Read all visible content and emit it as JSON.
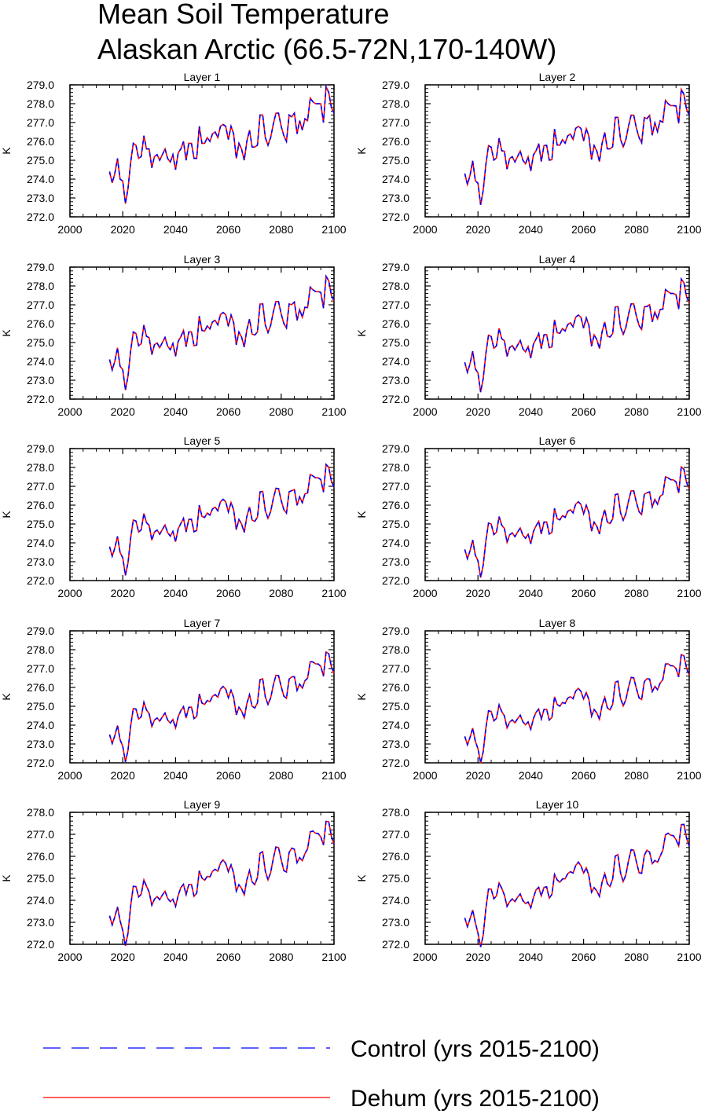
{
  "title": [
    "Mean Soil Temperature",
    "Alaskan Arctic (66.5-72N,170-140W)"
  ],
  "legend": [
    {
      "label": "Control (yrs 2015-2100)",
      "color": "#0000ff",
      "dash": "dashed"
    },
    {
      "label": "Dehum (yrs 2015-2100)",
      "color": "#ff0000",
      "dash": "solid"
    }
  ],
  "chart_data": {
    "type": "line",
    "ylabel": "K",
    "xlim": [
      2000,
      2100
    ],
    "x_ticks": [
      "2000",
      "2020",
      "2040",
      "2060",
      "2080",
      "2100"
    ],
    "series_names": [
      "Control (yrs 2015-2100)",
      "Dehum (yrs 2015-2100)"
    ],
    "x": [
      2015,
      2016,
      2017,
      2018,
      2019,
      2020,
      2021,
      2022,
      2023,
      2024,
      2025,
      2026,
      2027,
      2028,
      2029,
      2030,
      2031,
      2032,
      2033,
      2034,
      2035,
      2036,
      2037,
      2038,
      2039,
      2040,
      2041,
      2042,
      2043,
      2044,
      2045,
      2046,
      2047,
      2048,
      2049,
      2050,
      2051,
      2052,
      2053,
      2054,
      2055,
      2056,
      2057,
      2058,
      2059,
      2060,
      2061,
      2062,
      2063,
      2064,
      2065,
      2066,
      2067,
      2068,
      2069,
      2070,
      2071,
      2072,
      2073,
      2074,
      2075,
      2076,
      2077,
      2078,
      2079,
      2080,
      2081,
      2082,
      2083,
      2084,
      2085,
      2086,
      2087,
      2088,
      2089,
      2090,
      2091,
      2092,
      2093,
      2094,
      2095,
      2096,
      2097,
      2098,
      2099,
      2100
    ],
    "base_curve": [
      274.4,
      273.8,
      274.3,
      275.1,
      274.0,
      273.9,
      272.7,
      273.5,
      274.9,
      275.9,
      275.8,
      275.1,
      275.2,
      276.3,
      275.6,
      275.6,
      274.6,
      275.2,
      275.3,
      275.0,
      275.3,
      275.6,
      275.1,
      274.9,
      275.3,
      274.5,
      275.4,
      275.6,
      276.0,
      275.0,
      275.9,
      275.9,
      275.1,
      275.1,
      276.8,
      275.9,
      275.9,
      276.2,
      276.0,
      276.4,
      276.5,
      276.2,
      276.8,
      276.9,
      276.8,
      276.1,
      276.8,
      276.4,
      275.1,
      275.9,
      275.6,
      275.0,
      276.0,
      276.6,
      275.7,
      275.7,
      275.8,
      277.4,
      277.4,
      276.2,
      275.8,
      276.2,
      276.9,
      277.5,
      277.5,
      276.8,
      276.3,
      276.0,
      277.4,
      277.3,
      277.5,
      276.4,
      277.1,
      276.6,
      277.2,
      277.1,
      278.3,
      278.1,
      278.0,
      278.0,
      278.0,
      277.0,
      278.9,
      278.6,
      277.8,
      277.5
    ],
    "panels": [
      {
        "title": "Layer 1",
        "ylim": [
          272.0,
          279.0
        ],
        "y_ticks": [
          "272.0",
          "273.0",
          "274.0",
          "275.0",
          "276.0",
          "277.0",
          "278.0",
          "279.0"
        ],
        "start_offset": 0.0,
        "end_offset": 0.0,
        "smoothing": 0.0
      },
      {
        "title": "Layer 2",
        "ylim": [
          272.0,
          279.0
        ],
        "y_ticks": [
          "272.0",
          "273.0",
          "274.0",
          "275.0",
          "276.0",
          "277.0",
          "278.0",
          "279.0"
        ],
        "start_offset": -0.1,
        "end_offset": -0.1,
        "smoothing": 0.05
      },
      {
        "title": "Layer 3",
        "ylim": [
          272.0,
          279.0
        ],
        "y_ticks": [
          "272.0",
          "273.0",
          "274.0",
          "275.0",
          "276.0",
          "277.0",
          "278.0",
          "279.0"
        ],
        "start_offset": -0.3,
        "end_offset": -0.3,
        "smoothing": 0.12
      },
      {
        "title": "Layer 4",
        "ylim": [
          272.0,
          279.0
        ],
        "y_ticks": [
          "272.0",
          "273.0",
          "274.0",
          "275.0",
          "276.0",
          "277.0",
          "278.0",
          "279.0"
        ],
        "start_offset": -0.45,
        "end_offset": -0.4,
        "smoothing": 0.18
      },
      {
        "title": "Layer 5",
        "ylim": [
          272.0,
          279.0
        ],
        "y_ticks": [
          "272.0",
          "273.0",
          "274.0",
          "275.0",
          "276.0",
          "277.0",
          "278.0",
          "279.0"
        ],
        "start_offset": -0.6,
        "end_offset": -0.55,
        "smoothing": 0.25
      },
      {
        "title": "Layer 6",
        "ylim": [
          272.0,
          279.0
        ],
        "y_ticks": [
          "272.0",
          "273.0",
          "274.0",
          "275.0",
          "276.0",
          "277.0",
          "278.0",
          "279.0"
        ],
        "start_offset": -0.75,
        "end_offset": -0.65,
        "smoothing": 0.3
      },
      {
        "title": "Layer 7",
        "ylim": [
          272.0,
          279.0
        ],
        "y_ticks": [
          "272.0",
          "273.0",
          "274.0",
          "275.0",
          "276.0",
          "277.0",
          "278.0",
          "279.0"
        ],
        "start_offset": -0.9,
        "end_offset": -0.75,
        "smoothing": 0.36
      },
      {
        "title": "Layer 8",
        "ylim": [
          272.0,
          279.0
        ],
        "y_ticks": [
          "272.0",
          "273.0",
          "274.0",
          "275.0",
          "276.0",
          "277.0",
          "278.0",
          "279.0"
        ],
        "start_offset": -1.0,
        "end_offset": -0.85,
        "smoothing": 0.42
      },
      {
        "title": "Layer 9",
        "ylim": [
          272.0,
          278.0
        ],
        "y_ticks": [
          "272.0",
          "273.0",
          "274.0",
          "275.0",
          "276.0",
          "277.0",
          "278.0"
        ],
        "start_offset": -1.1,
        "end_offset": -0.95,
        "smoothing": 0.48
      },
      {
        "title": "Layer 10",
        "ylim": [
          272.0,
          278.0
        ],
        "y_ticks": [
          "272.0",
          "273.0",
          "274.0",
          "275.0",
          "276.0",
          "277.0",
          "278.0"
        ],
        "start_offset": -1.2,
        "end_offset": -1.05,
        "smoothing": 0.55
      }
    ]
  }
}
